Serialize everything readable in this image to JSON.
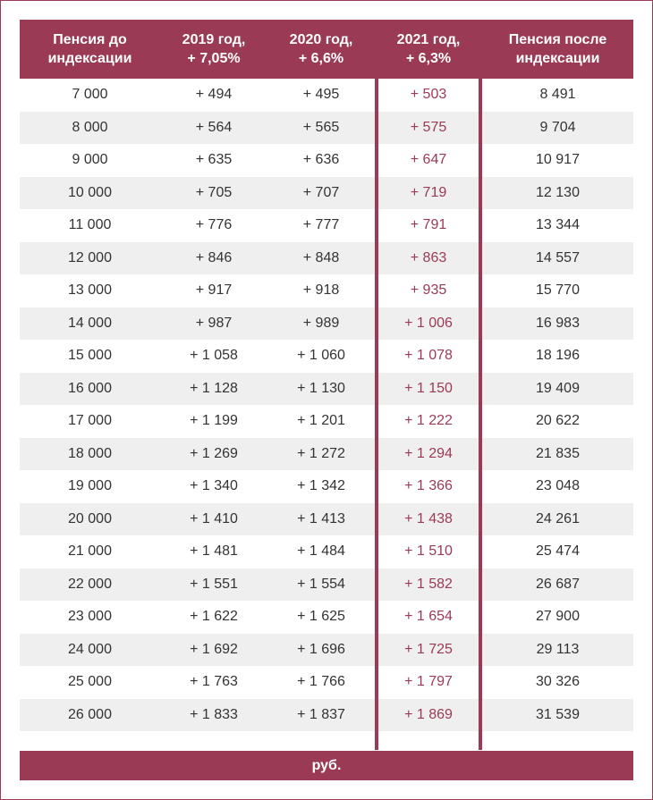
{
  "table": {
    "headers": [
      "Пенсия до\nиндексации",
      "2019 год,\n+ 7,05%",
      "2020 год,\n+ 6,6%",
      "2021 год,\n+ 6,3%",
      "Пенсия после\nиндексации"
    ],
    "rows": [
      [
        "7 000",
        "+ 494",
        "+ 495",
        "+ 503",
        "8 491"
      ],
      [
        "8 000",
        "+ 564",
        "+ 565",
        "+ 575",
        "9 704"
      ],
      [
        "9 000",
        "+ 635",
        "+ 636",
        "+ 647",
        "10 917"
      ],
      [
        "10 000",
        "+ 705",
        "+ 707",
        "+ 719",
        "12 130"
      ],
      [
        "11 000",
        "+ 776",
        "+ 777",
        "+ 791",
        "13 344"
      ],
      [
        "12 000",
        "+ 846",
        "+ 848",
        "+ 863",
        "14 557"
      ],
      [
        "13 000",
        "+ 917",
        "+ 918",
        "+ 935",
        "15 770"
      ],
      [
        "14 000",
        "+ 987",
        "+ 989",
        "+ 1 006",
        "16 983"
      ],
      [
        "15 000",
        "+ 1 058",
        "+ 1 060",
        "+ 1 078",
        "18 196"
      ],
      [
        "16 000",
        "+ 1 128",
        "+ 1 130",
        "+ 1 150",
        "19 409"
      ],
      [
        "17 000",
        "+ 1 199",
        "+ 1 201",
        "+ 1 222",
        "20 622"
      ],
      [
        "18 000",
        "+ 1 269",
        "+ 1 272",
        "+ 1 294",
        "21 835"
      ],
      [
        "19 000",
        "+ 1 340",
        "+ 1 342",
        "+ 1 366",
        "23 048"
      ],
      [
        "20 000",
        "+ 1 410",
        "+ 1 413",
        "+ 1 438",
        "24 261"
      ],
      [
        "21 000",
        "+ 1 481",
        "+ 1 484",
        "+ 1 510",
        "25 474"
      ],
      [
        "22 000",
        "+ 1 551",
        "+ 1 554",
        "+ 1 582",
        "26 687"
      ],
      [
        "23 000",
        "+ 1 622",
        "+ 1 625",
        "+ 1 654",
        "27 900"
      ],
      [
        "24 000",
        "+ 1 692",
        "+ 1 696",
        "+ 1 725",
        "29 113"
      ],
      [
        "25 000",
        "+ 1 763",
        "+ 1 766",
        "+ 1 797",
        "30 326"
      ],
      [
        "26 000",
        "+ 1 833",
        "+ 1 837",
        "+ 1 869",
        "31 539"
      ]
    ],
    "footer": "руб."
  },
  "colors": {
    "accent": "#9b3a55",
    "stripe": "#efefef",
    "text": "#333333"
  }
}
